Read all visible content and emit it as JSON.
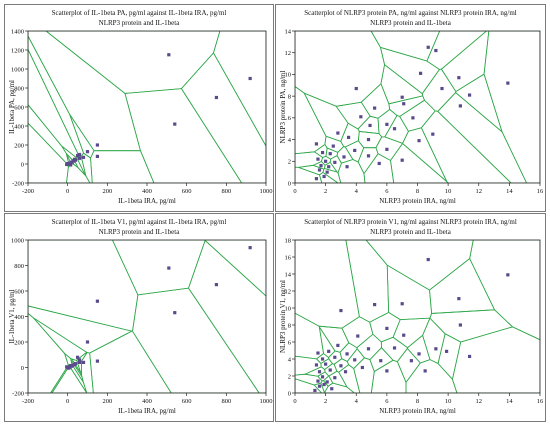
{
  "chart_data": [
    {
      "type": "scatter",
      "title": "Scatterplot of IL-1beta PA, pg/ml against IL-1beta IRA, pg/ml",
      "subtitle": "NLRP3 protein and IL-1beta",
      "xlabel": "IL-1beta IRA, pg/ml",
      "ylabel": "IL-1beta PA, pg/ml",
      "xlim": [
        -200,
        1000
      ],
      "ylim": [
        -200,
        1400
      ],
      "xticks": [
        -200,
        0,
        200,
        400,
        600,
        800,
        1000
      ],
      "yticks": [
        -200,
        0,
        200,
        400,
        600,
        800,
        1000,
        1200,
        1400
      ],
      "xtick_labels": [
        "-200",
        "0",
        "200",
        "400",
        "600",
        "800",
        "1000"
      ],
      "ytick_labels": [
        "-200",
        "0",
        "200",
        "400",
        "600",
        "800",
        "1000",
        "1200",
        "1400"
      ],
      "grid": false,
      "overlay": "voronoi",
      "point_color": "#5a4a8c",
      "line_color": "#2fa84a",
      "points": [
        [
          510,
          1150
        ],
        [
          920,
          900
        ],
        [
          750,
          700
        ],
        [
          540,
          420
        ],
        [
          150,
          200
        ],
        [
          100,
          130
        ],
        [
          150,
          80
        ],
        [
          50,
          90
        ],
        [
          60,
          60
        ],
        [
          40,
          40
        ],
        [
          30,
          30
        ],
        [
          20,
          20
        ],
        [
          10,
          10
        ],
        [
          0,
          5
        ],
        [
          5,
          0
        ],
        [
          -5,
          -5
        ],
        [
          15,
          -10
        ],
        [
          35,
          50
        ],
        [
          60,
          100
        ],
        [
          80,
          70
        ]
      ]
    },
    {
      "type": "scatter",
      "title": "Scatterplot of NLRP3 protein PA, ng/ml against NLRP3 protein IRA, ng/ml",
      "subtitle": "NLRP3 protein and IL-1beta",
      "xlabel": "NLRP3 protein IRA, ng/ml",
      "ylabel": "NLRP3 protein PA, ng/ml",
      "xlim": [
        0,
        16
      ],
      "ylim": [
        0,
        14
      ],
      "xticks": [
        0,
        2,
        4,
        6,
        8,
        10,
        12,
        14,
        16
      ],
      "yticks": [
        0,
        2,
        4,
        6,
        8,
        10,
        12,
        14
      ],
      "xtick_labels": [
        "0",
        "2",
        "4",
        "6",
        "8",
        "10",
        "12",
        "14",
        "16"
      ],
      "ytick_labels": [
        "0",
        "2",
        "4",
        "6",
        "8",
        "10",
        "12",
        "14"
      ],
      "grid": false,
      "overlay": "voronoi",
      "point_color": "#5a4a8c",
      "line_color": "#2fa84a",
      "points": [
        [
          8.7,
          12.5
        ],
        [
          9.2,
          12.2
        ],
        [
          10.7,
          9.7
        ],
        [
          13.9,
          9.2
        ],
        [
          8.2,
          10.1
        ],
        [
          9.6,
          8.7
        ],
        [
          11.4,
          8.1
        ],
        [
          10.8,
          7.1
        ],
        [
          4.0,
          8.7
        ],
        [
          7.0,
          7.9
        ],
        [
          7.1,
          7.3
        ],
        [
          5.2,
          6.9
        ],
        [
          4.3,
          6.1
        ],
        [
          7.7,
          6.0
        ],
        [
          6.0,
          5.4
        ],
        [
          4.9,
          5.3
        ],
        [
          6.5,
          5.0
        ],
        [
          9.0,
          4.5
        ],
        [
          2.8,
          4.6
        ],
        [
          3.5,
          4.2
        ],
        [
          4.8,
          4.0
        ],
        [
          8.1,
          3.9
        ],
        [
          1.4,
          3.6
        ],
        [
          2.5,
          3.4
        ],
        [
          3.9,
          3.0
        ],
        [
          6.0,
          3.1
        ],
        [
          1.8,
          2.8
        ],
        [
          2.3,
          2.7
        ],
        [
          3.2,
          2.4
        ],
        [
          1.5,
          2.2
        ],
        [
          2.0,
          2.0
        ],
        [
          2.6,
          1.9
        ],
        [
          1.7,
          1.6
        ],
        [
          2.2,
          1.5
        ],
        [
          3.4,
          1.5
        ],
        [
          7.0,
          2.1
        ],
        [
          1.6,
          1.2
        ],
        [
          2.1,
          1.0
        ],
        [
          1.9,
          0.6
        ],
        [
          1.4,
          0.4
        ],
        [
          5.5,
          1.8
        ],
        [
          4.8,
          2.5
        ]
      ]
    },
    {
      "type": "scatter",
      "title": "Scatterplot of IL-1beta V1, pg/ml against IL-1beta IRA, pg/ml",
      "subtitle": "NLRP3 protein and IL-1beta",
      "xlabel": "IL-1beta IRA, pg/ml",
      "ylabel": "IL-1beta V1, pg/ml",
      "xlim": [
        -200,
        1000
      ],
      "ylim": [
        -200,
        1000
      ],
      "xticks": [
        -200,
        0,
        200,
        400,
        600,
        800,
        1000
      ],
      "yticks": [
        -200,
        0,
        200,
        400,
        600,
        800,
        1000
      ],
      "xtick_labels": [
        "-200",
        "0",
        "200",
        "400",
        "600",
        "800",
        "1000"
      ],
      "ytick_labels": [
        "-200",
        "0",
        "200",
        "400",
        "600",
        "800",
        "1000"
      ],
      "grid": false,
      "overlay": "voronoi",
      "point_color": "#5a4a8c",
      "line_color": "#2fa84a",
      "points": [
        [
          920,
          940
        ],
        [
          510,
          780
        ],
        [
          750,
          650
        ],
        [
          540,
          430
        ],
        [
          150,
          520
        ],
        [
          100,
          200
        ],
        [
          150,
          50
        ],
        [
          50,
          80
        ],
        [
          60,
          40
        ],
        [
          40,
          30
        ],
        [
          30,
          20
        ],
        [
          20,
          10
        ],
        [
          10,
          5
        ],
        [
          0,
          0
        ],
        [
          5,
          -5
        ],
        [
          -5,
          5
        ],
        [
          15,
          15
        ],
        [
          35,
          25
        ],
        [
          60,
          60
        ],
        [
          80,
          40
        ]
      ]
    },
    {
      "type": "scatter",
      "title": "Scatterplot of NLRP3 protein V1, ng/ml against NLRP3 protein IRA, ng/ml",
      "subtitle": "NLRP3 protein and IL-1beta",
      "xlabel": "NLRP3 protein IRA, ng/ml",
      "ylabel": "NLRP3 protein V1, ng/ml",
      "xlim": [
        0,
        16
      ],
      "ylim": [
        0,
        18
      ],
      "xticks": [
        0,
        2,
        4,
        6,
        8,
        10,
        12,
        14,
        16
      ],
      "yticks": [
        0,
        2,
        4,
        6,
        8,
        10,
        12,
        14,
        16,
        18
      ],
      "xtick_labels": [
        "0",
        "2",
        "4",
        "6",
        "8",
        "10",
        "12",
        "14",
        "16"
      ],
      "ytick_labels": [
        "0",
        "2",
        "4",
        "6",
        "8",
        "10",
        "12",
        "14",
        "16",
        "18"
      ],
      "grid": false,
      "overlay": "voronoi",
      "point_color": "#5a4a8c",
      "line_color": "#2fa84a",
      "points": [
        [
          8.7,
          15.7
        ],
        [
          13.9,
          13.9
        ],
        [
          10.7,
          11.1
        ],
        [
          5.2,
          10.4
        ],
        [
          7.0,
          10.5
        ],
        [
          3.0,
          9.7
        ],
        [
          10.8,
          8.0
        ],
        [
          6.0,
          7.6
        ],
        [
          7.1,
          6.8
        ],
        [
          4.1,
          6.7
        ],
        [
          9.2,
          5.2
        ],
        [
          11.4,
          4.3
        ],
        [
          2.8,
          5.6
        ],
        [
          4.8,
          5.2
        ],
        [
          6.5,
          5.3
        ],
        [
          1.5,
          4.7
        ],
        [
          2.2,
          4.9
        ],
        [
          3.4,
          4.6
        ],
        [
          8.1,
          4.6
        ],
        [
          9.9,
          4.9
        ],
        [
          1.8,
          4.0
        ],
        [
          2.6,
          4.2
        ],
        [
          3.9,
          3.9
        ],
        [
          5.6,
          3.8
        ],
        [
          7.6,
          3.8
        ],
        [
          1.4,
          3.3
        ],
        [
          2.0,
          3.4
        ],
        [
          3.0,
          3.2
        ],
        [
          4.4,
          3.0
        ],
        [
          6.0,
          2.6
        ],
        [
          8.5,
          2.6
        ],
        [
          1.6,
          2.5
        ],
        [
          2.3,
          2.7
        ],
        [
          3.3,
          2.5
        ],
        [
          1.8,
          1.9
        ],
        [
          2.6,
          1.8
        ],
        [
          1.5,
          1.4
        ],
        [
          2.1,
          1.3
        ],
        [
          1.9,
          1.0
        ],
        [
          1.6,
          0.8
        ],
        [
          2.4,
          0.5
        ],
        [
          1.3,
          0.3
        ]
      ]
    }
  ]
}
